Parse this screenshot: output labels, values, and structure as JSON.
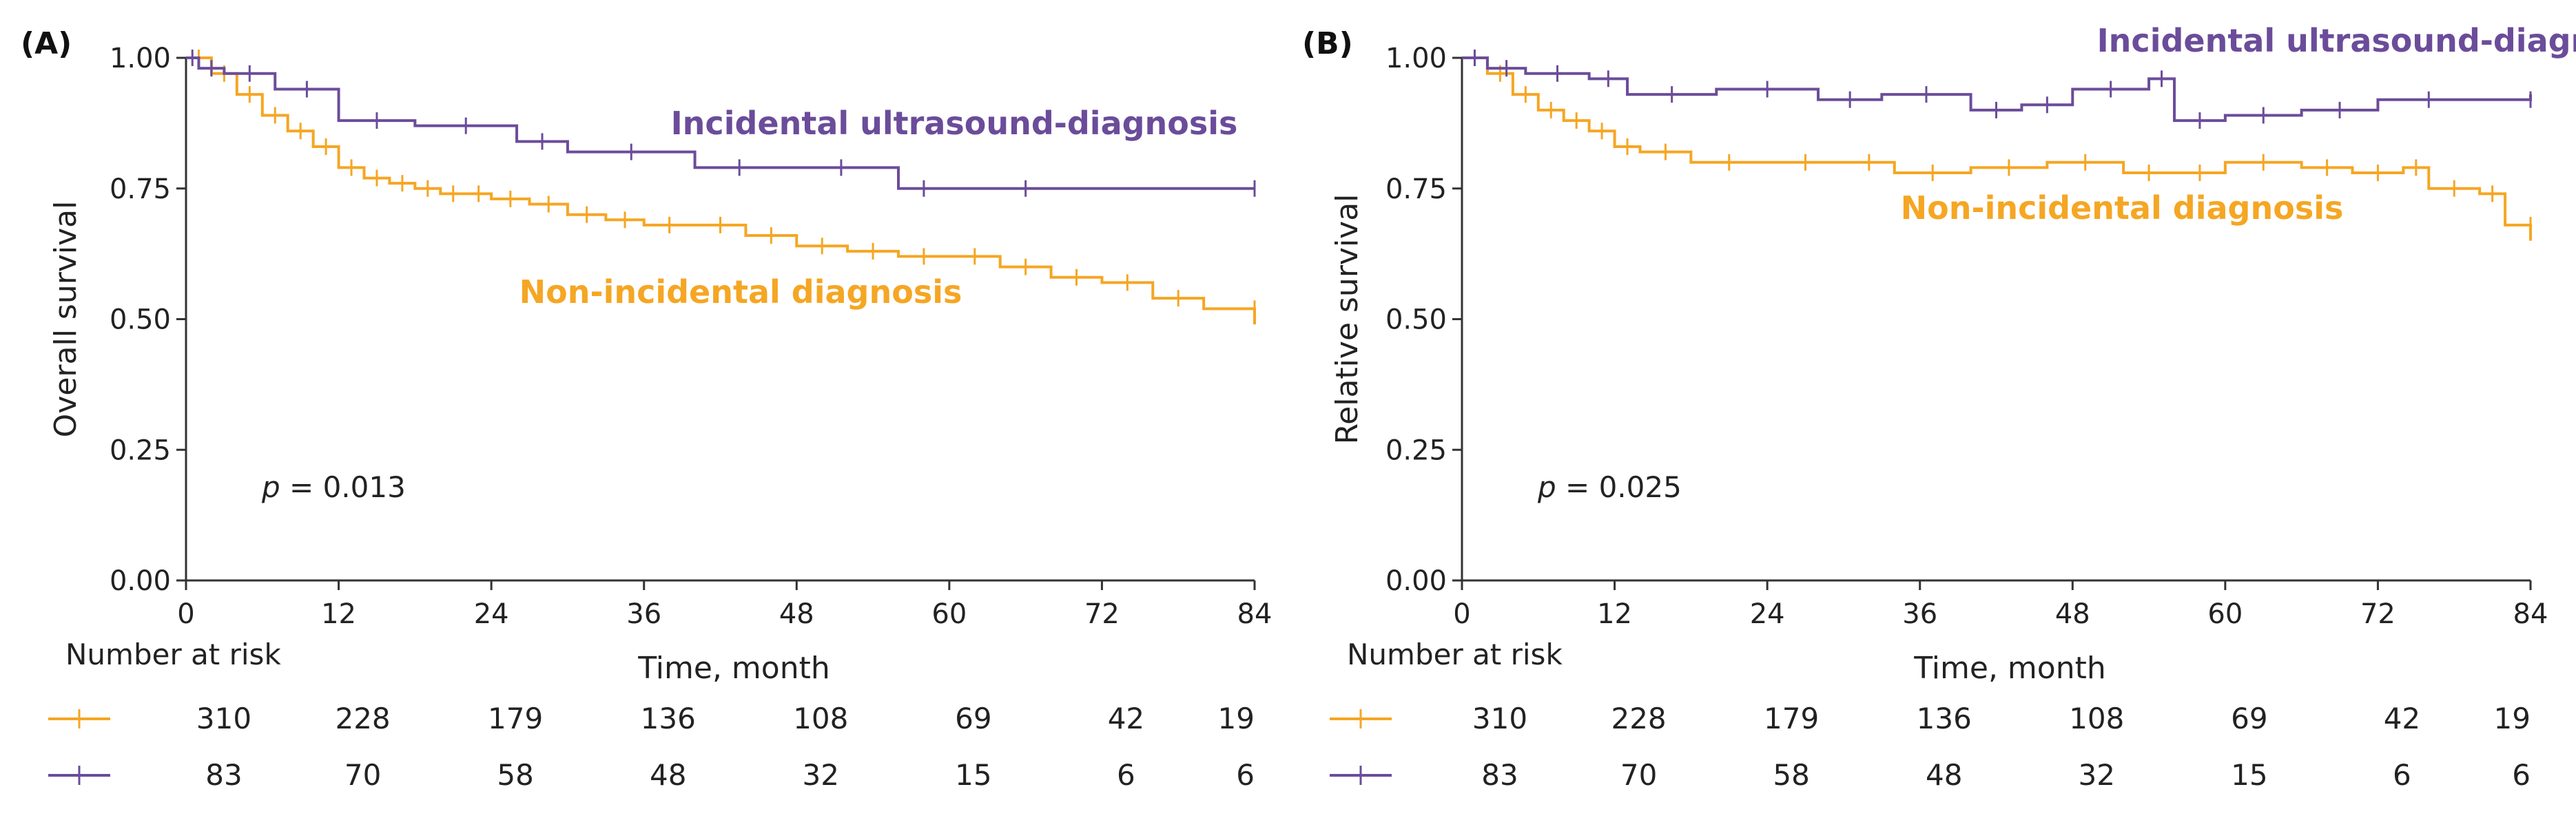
{
  "colors": {
    "non_incidental": "#F5A623",
    "incidental": "#6B4C9A",
    "axis": "#333333"
  },
  "chart_data": [
    {
      "type": "line",
      "panel_label": "(A)",
      "title": "",
      "xlabel": "Time, month",
      "ylabel": "Overall survival",
      "xlim": [
        0,
        84
      ],
      "ylim": [
        0,
        1
      ],
      "x_ticks": [
        "0",
        "12",
        "24",
        "36",
        "48",
        "60",
        "72",
        "84"
      ],
      "y_ticks": [
        "0.00",
        "0.25",
        "0.50",
        "0.75",
        "1.00"
      ],
      "p_label": "p",
      "p_value": "= 0.013",
      "series": [
        {
          "name": "Non-incidental diagnosis",
          "color": "#F5A623",
          "x": [
            0,
            2,
            4,
            6,
            8,
            10,
            12,
            14,
            16,
            18,
            20,
            22,
            24,
            27,
            30,
            33,
            36,
            40,
            44,
            48,
            52,
            56,
            60,
            64,
            68,
            72,
            76,
            80,
            84
          ],
          "y": [
            1.0,
            0.97,
            0.93,
            0.89,
            0.86,
            0.83,
            0.79,
            0.77,
            0.76,
            0.75,
            0.74,
            0.74,
            0.73,
            0.72,
            0.7,
            0.69,
            0.68,
            0.68,
            0.66,
            0.64,
            0.63,
            0.62,
            0.62,
            0.6,
            0.58,
            0.57,
            0.54,
            0.52,
            0.49
          ]
        },
        {
          "name": "Incidental ultrasound-diagnosis",
          "color": "#6B4C9A",
          "x": [
            0,
            1,
            3,
            7,
            12,
            18,
            26,
            30,
            40,
            47,
            56,
            60,
            72,
            84
          ],
          "y": [
            1.0,
            0.98,
            0.97,
            0.94,
            0.88,
            0.87,
            0.84,
            0.82,
            0.79,
            0.79,
            0.75,
            0.75,
            0.75,
            0.75
          ]
        }
      ],
      "risk_table": {
        "title": "Number at risk",
        "times": [
          0,
          12,
          24,
          36,
          48,
          60,
          72,
          84
        ],
        "rows": [
          {
            "series": "Non-incidental diagnosis",
            "counts": [
              "310",
              "228",
              "179",
              "136",
              "108",
              "69",
              "42",
              "19"
            ]
          },
          {
            "series": "Incidental ultrasound-diagnosis",
            "counts": [
              "83",
              "70",
              "58",
              "48",
              "32",
              "15",
              "6",
              "6"
            ]
          }
        ]
      }
    },
    {
      "type": "line",
      "panel_label": "(B)",
      "title": "",
      "xlabel": "Time, month",
      "ylabel": "Relative survival",
      "xlim": [
        0,
        84
      ],
      "ylim": [
        0,
        1
      ],
      "x_ticks": [
        "0",
        "12",
        "24",
        "36",
        "48",
        "60",
        "72",
        "84"
      ],
      "y_ticks": [
        "0.00",
        "0.25",
        "0.50",
        "0.75",
        "1.00"
      ],
      "p_label": "p",
      "p_value": "= 0.025",
      "series": [
        {
          "name": "Non-incidental diagnosis",
          "color": "#F5A623",
          "x": [
            0,
            2,
            4,
            6,
            8,
            10,
            12,
            14,
            18,
            24,
            30,
            34,
            40,
            46,
            52,
            56,
            60,
            66,
            70,
            74,
            76,
            80,
            82,
            84
          ],
          "y": [
            1.0,
            0.97,
            0.93,
            0.9,
            0.88,
            0.86,
            0.83,
            0.82,
            0.8,
            0.8,
            0.8,
            0.78,
            0.79,
            0.8,
            0.78,
            0.78,
            0.8,
            0.79,
            0.78,
            0.79,
            0.75,
            0.74,
            0.68,
            0.65
          ]
        },
        {
          "name": "Incidental ultrasound-diagnosis",
          "color": "#6B4C9A",
          "x": [
            0,
            2,
            5,
            10,
            13,
            20,
            28,
            33,
            40,
            44,
            48,
            54,
            56,
            60,
            66,
            72,
            80,
            84
          ],
          "y": [
            1.0,
            0.98,
            0.97,
            0.96,
            0.93,
            0.94,
            0.92,
            0.93,
            0.9,
            0.91,
            0.94,
            0.96,
            0.88,
            0.89,
            0.9,
            0.92,
            0.92,
            0.93
          ]
        }
      ],
      "risk_table": {
        "title": "Number at risk",
        "times": [
          0,
          12,
          24,
          36,
          48,
          60,
          72,
          84
        ],
        "rows": [
          {
            "series": "Non-incidental diagnosis",
            "counts": [
              "310",
              "228",
              "179",
              "136",
              "108",
              "69",
              "42",
              "19"
            ]
          },
          {
            "series": "Incidental ultrasound-diagnosis",
            "counts": [
              "83",
              "70",
              "58",
              "48",
              "32",
              "15",
              "6",
              "6"
            ]
          }
        ]
      }
    }
  ]
}
